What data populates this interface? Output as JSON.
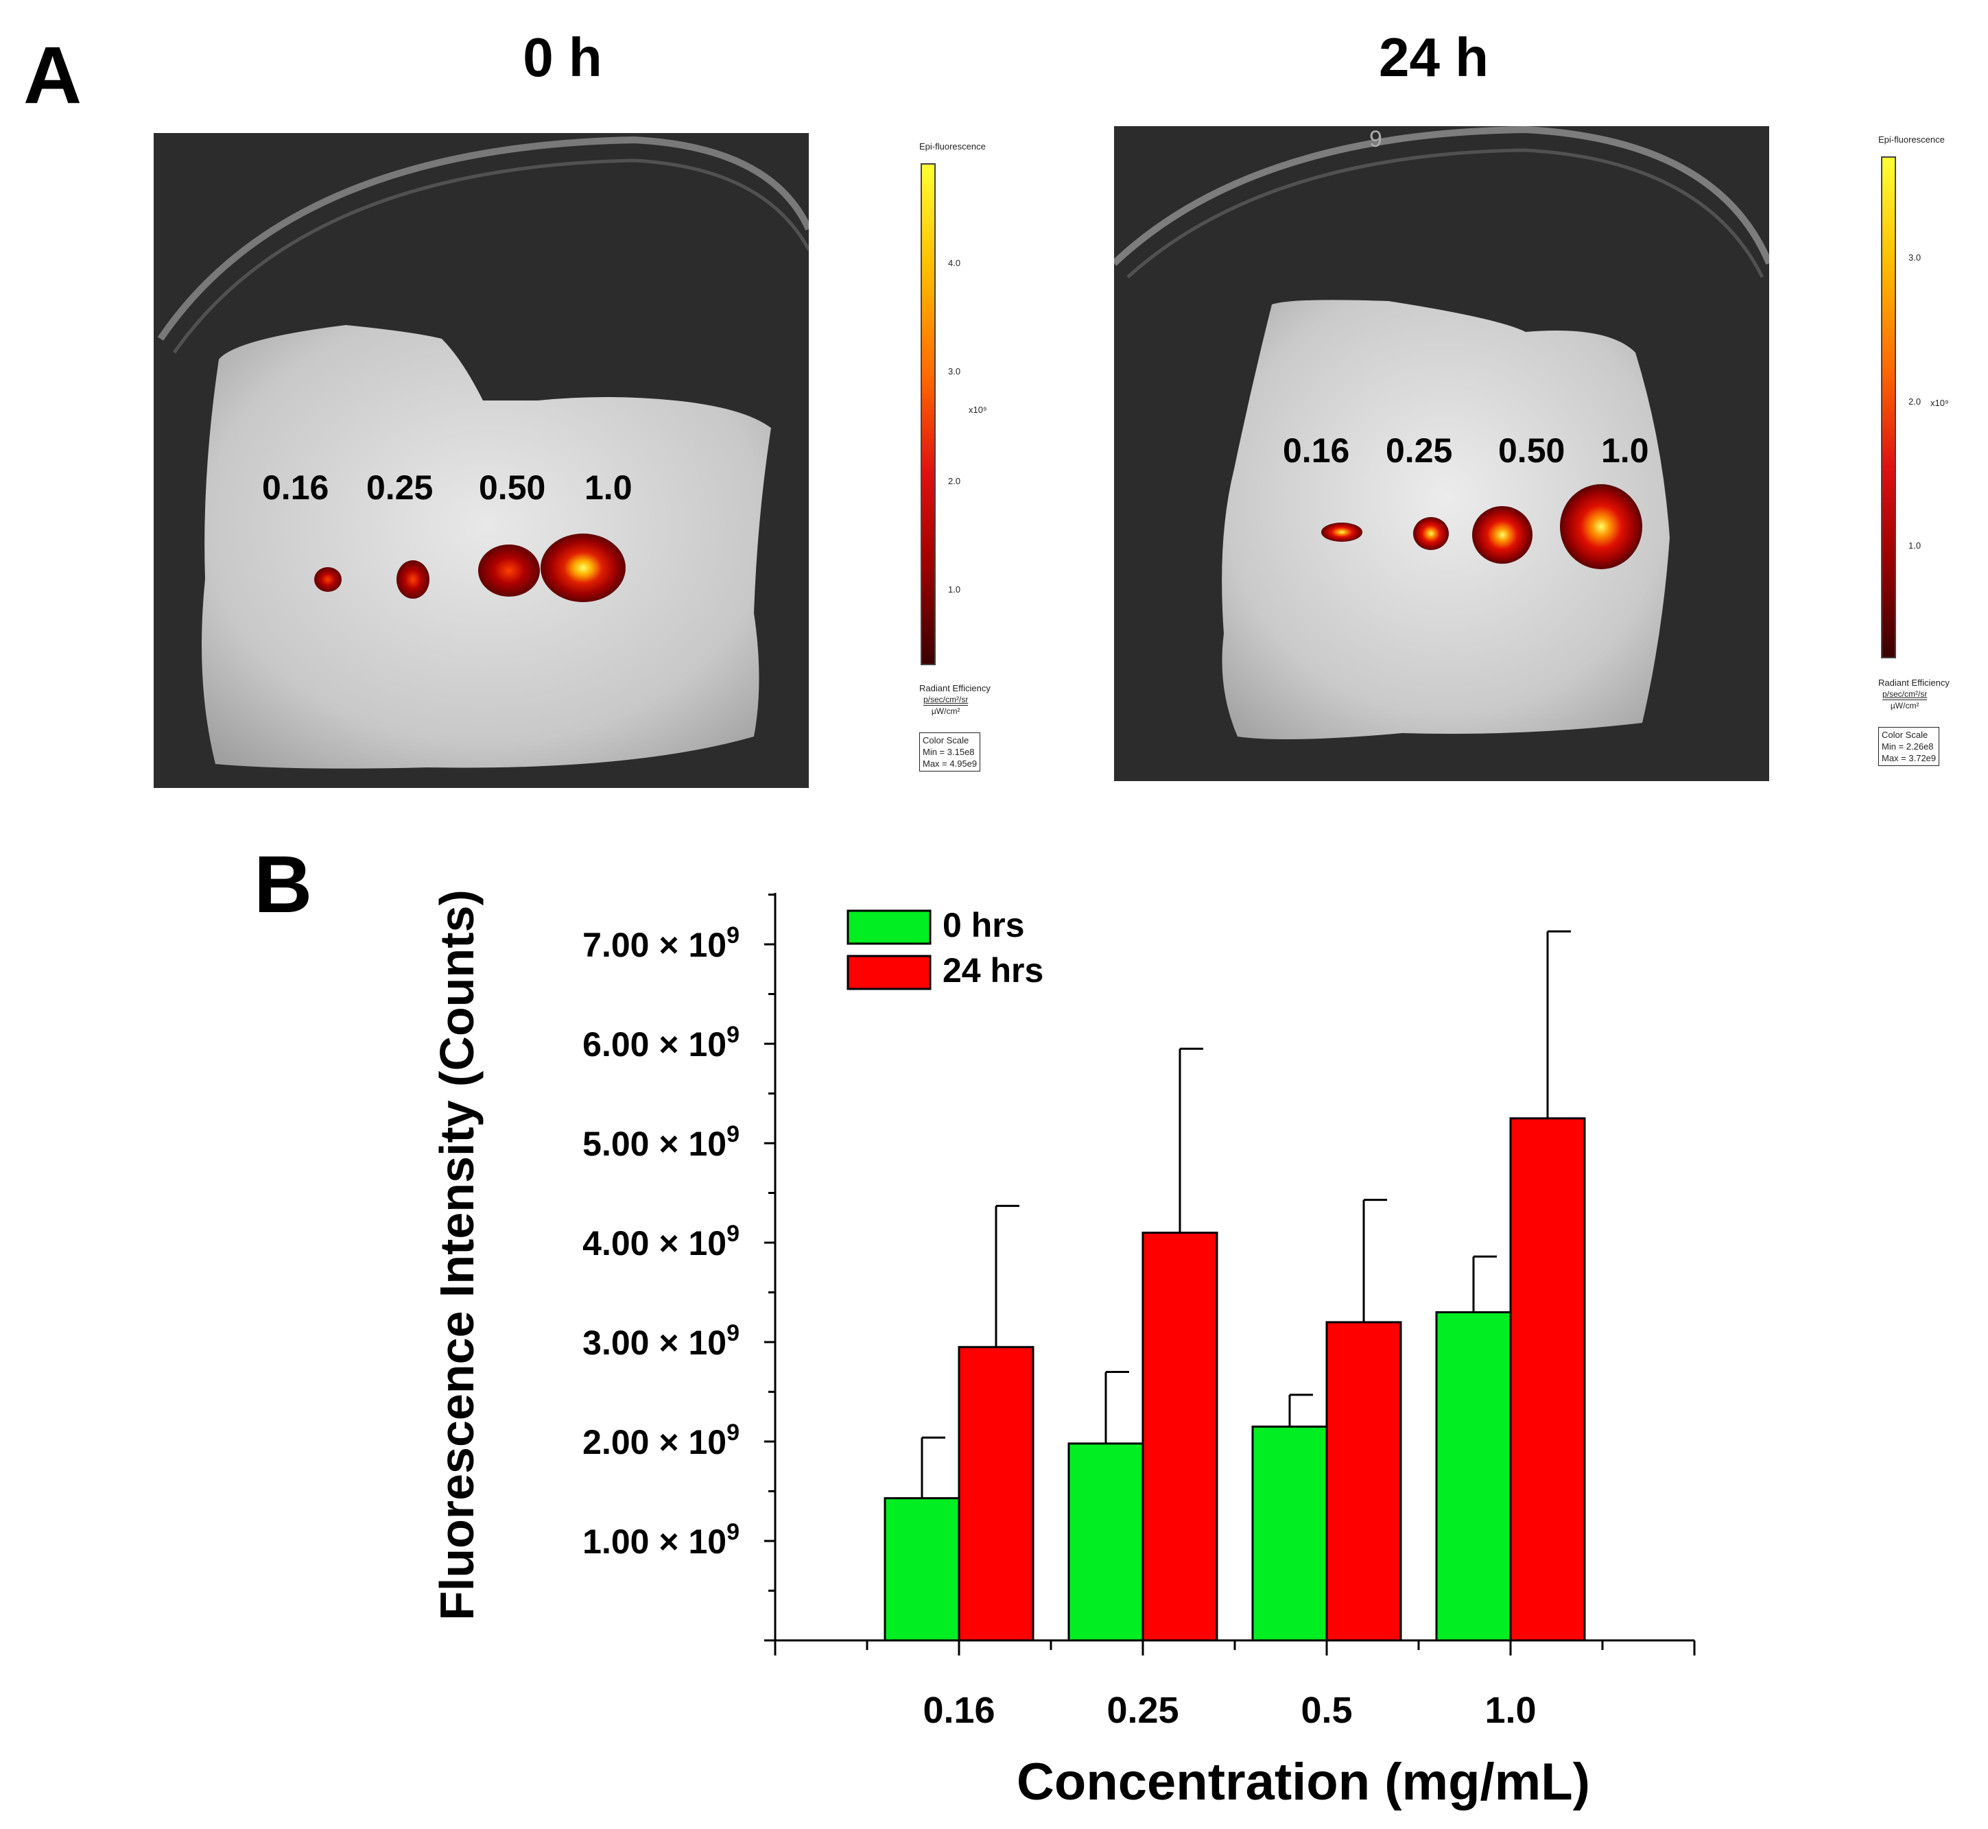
{
  "panel_a": {
    "letter": "A",
    "images": [
      {
        "title": "0 h",
        "spot_labels": [
          "0.16",
          "0.25",
          "0.50",
          "1.0"
        ],
        "colorscale": {
          "header": "Epi-fluorescence",
          "ticks": [
            "4.0",
            "3.0",
            "2.0",
            "1.0"
          ],
          "multiplier": "x10⁹",
          "unit_label": "Radiant Efficiency",
          "unit_num": "p/sec/cm²/sr",
          "unit_den": "µW/cm²",
          "box_title": "Color Scale",
          "box_min": "Min = 3.15e8",
          "box_max": "Max = 4.95e9"
        }
      },
      {
        "title": "24 h",
        "dish_number": "9",
        "spot_labels": [
          "0.16",
          "0.25",
          "0.50",
          "1.0"
        ],
        "colorscale": {
          "header": "Epi-fluorescence",
          "ticks": [
            "3.0",
            "2.0",
            "1.0"
          ],
          "multiplier": "x10⁹",
          "unit_label": "Radiant Efficiency",
          "unit_num": "p/sec/cm²/sr",
          "unit_den": "µW/cm²",
          "box_title": "Color Scale",
          "box_min": "Min = 2.26e8",
          "box_max": "Max = 3.72e9"
        }
      }
    ]
  },
  "panel_b": {
    "letter": "B"
  },
  "chart_data": {
    "type": "bar",
    "title": "",
    "xlabel": "Concentration (mg/mL)",
    "ylabel": "Fluorescence Intensity (Counts)",
    "categories": [
      "0.16",
      "0.25",
      "0.5",
      "1.0"
    ],
    "ylim": [
      0,
      7500000000
    ],
    "ytick_values": [
      1000000000,
      2000000000,
      3000000000,
      4000000000,
      5000000000,
      6000000000,
      7000000000
    ],
    "ytick_mantissas": [
      "1.00",
      "2.00",
      "3.00",
      "4.00",
      "5.00",
      "6.00",
      "7.00"
    ],
    "ytick_times": "×",
    "ytick_base": "10",
    "ytick_exponent": "9",
    "legend_position": "top-left",
    "series": [
      {
        "name": "0 hrs",
        "color": "#00ee22",
        "values": [
          1430000000,
          1980000000,
          2150000000,
          3300000000
        ],
        "errors": [
          610000000,
          720000000,
          320000000,
          560000000
        ]
      },
      {
        "name": "24 hrs",
        "color": "#ff0000",
        "values": [
          2950000000,
          4100000000,
          3200000000,
          5250000000
        ],
        "errors": [
          1420000000,
          1850000000,
          1230000000,
          1880000000
        ]
      }
    ]
  }
}
